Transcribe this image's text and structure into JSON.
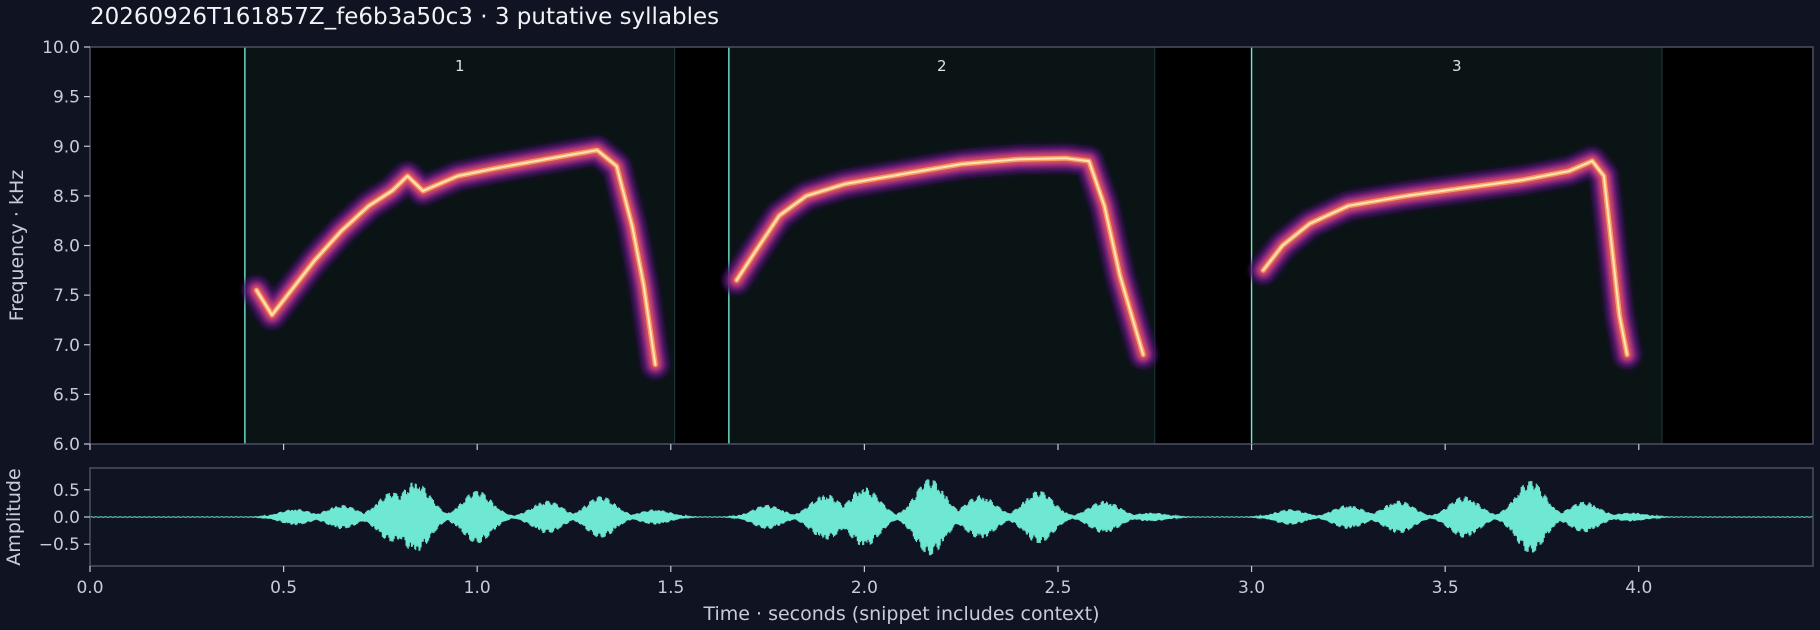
{
  "title": "20260926T161857Z_fe6b3a50c3  ·  3 putative syllables",
  "colors": {
    "background": "#0f1322",
    "plot_bg": "#000000",
    "segment_fill": "#0a1414",
    "accent": "#6ee8d3",
    "axis": "#4a5064",
    "text": "#c9ccd6"
  },
  "chart_data": [
    {
      "type": "heatmap",
      "kind": "spectrogram",
      "ylabel": "Frequency · kHz",
      "xlim": [
        0.0,
        4.45
      ],
      "ylim": [
        6.0,
        10.0
      ],
      "yticks": [
        "6.0",
        "6.5",
        "7.0",
        "7.5",
        "8.0",
        "8.5",
        "9.0",
        "9.5",
        "10.0"
      ],
      "colormap": "magma",
      "segments": [
        {
          "label": "1",
          "start": 0.4,
          "end": 1.51
        },
        {
          "label": "2",
          "start": 1.65,
          "end": 2.75
        },
        {
          "label": "3",
          "start": 3.0,
          "end": 4.06
        }
      ],
      "series": [
        {
          "x": [
            0.43,
            0.47,
            0.52,
            0.58,
            0.65,
            0.72,
            0.78,
            0.82,
            0.86,
            0.95,
            1.05,
            1.15,
            1.25,
            1.31,
            1.36,
            1.4,
            1.43,
            1.46
          ],
          "y": [
            7.55,
            7.3,
            7.55,
            7.85,
            8.15,
            8.4,
            8.55,
            8.7,
            8.55,
            8.7,
            8.78,
            8.85,
            8.92,
            8.96,
            8.8,
            8.2,
            7.6,
            6.8
          ]
        },
        {
          "x": [
            1.67,
            1.72,
            1.78,
            1.85,
            1.95,
            2.1,
            2.25,
            2.4,
            2.52,
            2.58,
            2.62,
            2.66,
            2.69,
            2.72
          ],
          "y": [
            7.65,
            7.95,
            8.3,
            8.5,
            8.62,
            8.72,
            8.82,
            8.87,
            8.88,
            8.85,
            8.4,
            7.7,
            7.3,
            6.9
          ]
        },
        {
          "x": [
            3.03,
            3.08,
            3.15,
            3.25,
            3.4,
            3.55,
            3.7,
            3.82,
            3.88,
            3.91,
            3.93,
            3.95,
            3.97
          ],
          "y": [
            7.75,
            8.0,
            8.22,
            8.4,
            8.5,
            8.58,
            8.66,
            8.75,
            8.85,
            8.7,
            8.0,
            7.3,
            6.9
          ]
        }
      ]
    },
    {
      "type": "line",
      "kind": "waveform",
      "ylabel": "Amplitude",
      "xlabel": "Time · seconds (snippet includes context)",
      "xlim": [
        0.0,
        4.45
      ],
      "ylim": [
        -0.9,
        0.9
      ],
      "xticks": [
        "0.0",
        "0.5",
        "1.0",
        "1.5",
        "2.0",
        "2.5",
        "3.0",
        "3.5",
        "4.0"
      ],
      "yticks": [
        "0.5",
        "0.0",
        "−0.5"
      ],
      "envelope_peaks": [
        {
          "t": 0.53,
          "a": 0.15
        },
        {
          "t": 0.65,
          "a": 0.22
        },
        {
          "t": 0.78,
          "a": 0.45
        },
        {
          "t": 0.84,
          "a": 0.65
        },
        {
          "t": 1.0,
          "a": 0.48
        },
        {
          "t": 1.18,
          "a": 0.3
        },
        {
          "t": 1.32,
          "a": 0.38
        },
        {
          "t": 1.46,
          "a": 0.14
        },
        {
          "t": 1.75,
          "a": 0.22
        },
        {
          "t": 1.9,
          "a": 0.42
        },
        {
          "t": 2.0,
          "a": 0.55
        },
        {
          "t": 2.17,
          "a": 0.7
        },
        {
          "t": 2.3,
          "a": 0.4
        },
        {
          "t": 2.45,
          "a": 0.48
        },
        {
          "t": 2.62,
          "a": 0.3
        },
        {
          "t": 2.74,
          "a": 0.08
        },
        {
          "t": 3.1,
          "a": 0.14
        },
        {
          "t": 3.25,
          "a": 0.22
        },
        {
          "t": 3.38,
          "a": 0.3
        },
        {
          "t": 3.55,
          "a": 0.38
        },
        {
          "t": 3.72,
          "a": 0.66
        },
        {
          "t": 3.86,
          "a": 0.28
        },
        {
          "t": 3.98,
          "a": 0.08
        }
      ]
    }
  ]
}
